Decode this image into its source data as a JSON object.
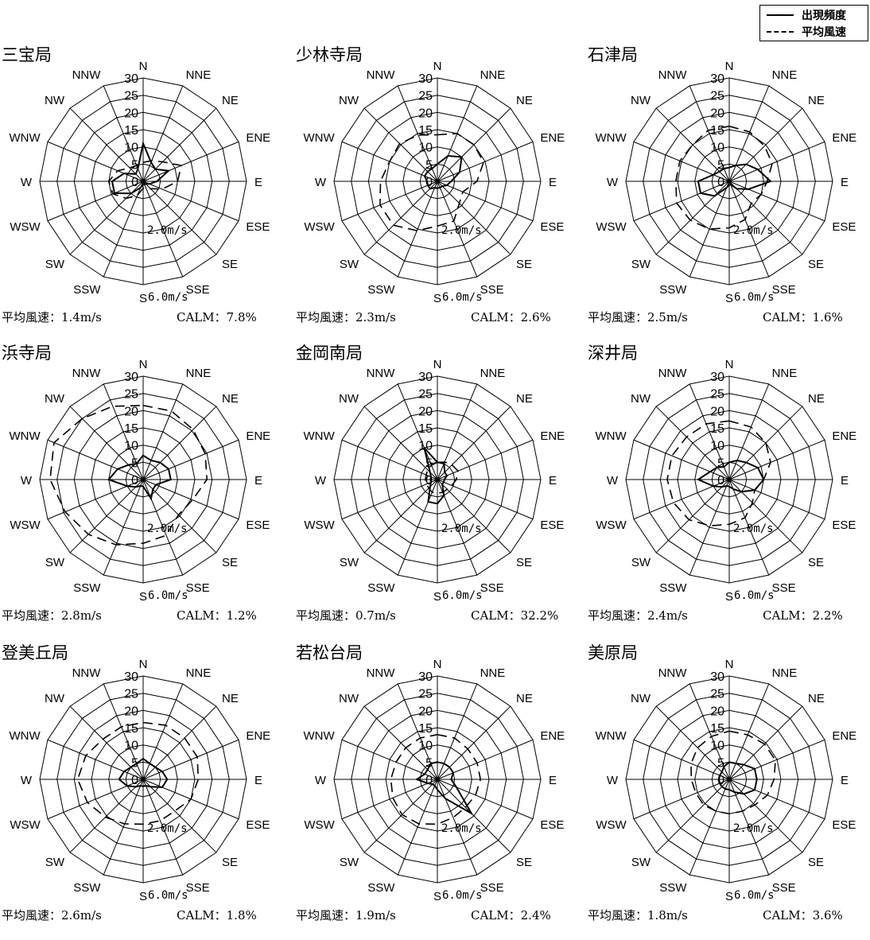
{
  "legend": {
    "frequency_label": "出現頻度",
    "speed_label": "平均風速"
  },
  "chart_data": [
    {
      "type": "radar",
      "title": "三宝局",
      "directions": [
        "N",
        "NNE",
        "NE",
        "ENE",
        "E",
        "ESE",
        "SE",
        "SSE",
        "S",
        "SSW",
        "SW",
        "WSW",
        "W",
        "WNW",
        "NW",
        "NNW"
      ],
      "radial_ticks": [
        0,
        5,
        10,
        15,
        20,
        25,
        30
      ],
      "rmax": 30,
      "speed_ticks": [
        "2.0m/s",
        "6.0m/s"
      ],
      "frequency": [
        11,
        6,
        5,
        8,
        4,
        2,
        1,
        1,
        1,
        2,
        5,
        9,
        9,
        6,
        3,
        4
      ],
      "mean_speed_ms": [
        1.1,
        1.3,
        1.6,
        2.4,
        2.0,
        1.2,
        0.6,
        0.4,
        0.4,
        0.9,
        1.4,
        1.9,
        2.0,
        1.6,
        1.1,
        1.0
      ],
      "avg_speed_text": "平均風速：1.4m/s",
      "calm_text": "CALM：7.8%"
    },
    {
      "type": "radar",
      "title": "少林寺局",
      "directions": [
        "N",
        "NNE",
        "NE",
        "ENE",
        "E",
        "ESE",
        "SE",
        "SSE",
        "S",
        "SSW",
        "SW",
        "WSW",
        "W",
        "WNW",
        "NW",
        "NNW"
      ],
      "radial_ticks": [
        0,
        5,
        10,
        15,
        20,
        25,
        30
      ],
      "rmax": 30,
      "speed_ticks": [
        "2.0m/s",
        "6.0m/s"
      ],
      "frequency": [
        5,
        8,
        10,
        7,
        4,
        3,
        2,
        2,
        2,
        2,
        3,
        3,
        3,
        4,
        4,
        4
      ],
      "mean_speed_ms": [
        2.7,
        3.0,
        3.0,
        2.9,
        2.3,
        1.6,
        1.8,
        2.5,
        2.6,
        3.1,
        3.6,
        3.6,
        3.3,
        3.0,
        3.1,
        2.9
      ],
      "avg_speed_text": "平均風速：2.3m/s",
      "calm_text": "CALM：2.6%"
    },
    {
      "type": "radar",
      "title": "石津局",
      "directions": [
        "N",
        "NNE",
        "NE",
        "ENE",
        "E",
        "ESE",
        "SE",
        "SSE",
        "S",
        "SSW",
        "SW",
        "WSW",
        "W",
        "WNW",
        "NW",
        "NNW"
      ],
      "radial_ticks": [
        0,
        5,
        10,
        15,
        20,
        25,
        30
      ],
      "rmax": 30,
      "speed_ticks": [
        "2.0m/s",
        "6.0m/s"
      ],
      "frequency": [
        4,
        5,
        7,
        9,
        12,
        6,
        3,
        1,
        1,
        2,
        6,
        9,
        9,
        5,
        4,
        4
      ],
      "mean_speed_ms": [
        3.2,
        3.1,
        2.9,
        2.7,
        2.2,
        2.0,
        1.8,
        2.4,
        2.7,
        3.0,
        3.2,
        3.3,
        3.1,
        3.1,
        3.0,
        3.2
      ],
      "avg_speed_text": "平均風速：2.5m/s",
      "calm_text": "CALM：1.6%"
    },
    {
      "type": "radar",
      "title": "浜寺局",
      "directions": [
        "N",
        "NNE",
        "NE",
        "ENE",
        "E",
        "ESE",
        "SE",
        "SSE",
        "S",
        "SSW",
        "SW",
        "WSW",
        "W",
        "WNW",
        "NW",
        "NNW"
      ],
      "radial_ticks": [
        0,
        5,
        10,
        15,
        20,
        25,
        30
      ],
      "rmax": 30,
      "speed_ticks": [
        "2.0m/s",
        "6.0m/s"
      ],
      "frequency": [
        7,
        6,
        7,
        8,
        8,
        4,
        4,
        6,
        2,
        2,
        3,
        5,
        10,
        8,
        6,
        5
      ],
      "mean_speed_ms": [
        4.3,
        4.3,
        4.1,
        3.9,
        3.7,
        3.1,
        2.9,
        3.5,
        3.7,
        4.1,
        4.5,
        4.9,
        5.4,
        5.6,
        5.0,
        4.6
      ],
      "avg_speed_text": "平均風速：2.8m/s",
      "calm_text": "CALM：1.2%"
    },
    {
      "type": "radar",
      "title": "金岡南局",
      "directions": [
        "N",
        "NNE",
        "NE",
        "ENE",
        "E",
        "ESE",
        "SE",
        "SSE",
        "S",
        "SSW",
        "SW",
        "WSW",
        "W",
        "WNW",
        "NW",
        "NNW"
      ],
      "radial_ticks": [
        0,
        5,
        10,
        15,
        20,
        25,
        30
      ],
      "rmax": 30,
      "speed_ticks": [
        "2.0m/s",
        "6.0m/s"
      ],
      "frequency": [
        5,
        5,
        3,
        3,
        2,
        2,
        2,
        5,
        7,
        7,
        3,
        2,
        2,
        2,
        3,
        10
      ],
      "mean_speed_ms": [
        1.0,
        1.1,
        1.2,
        1.3,
        1.1,
        0.9,
        0.8,
        0.8,
        0.8,
        0.8,
        0.7,
        0.7,
        0.7,
        0.7,
        0.8,
        0.9
      ],
      "avg_speed_text": "平均風速：0.7m/s",
      "calm_text": "CALM：32.2%"
    },
    {
      "type": "radar",
      "title": "深井局",
      "directions": [
        "N",
        "NNE",
        "NE",
        "ENE",
        "E",
        "ESE",
        "SE",
        "SSE",
        "S",
        "SSW",
        "SW",
        "WSW",
        "W",
        "WNW",
        "NW",
        "NNW"
      ],
      "radial_ticks": [
        0,
        5,
        10,
        15,
        20,
        25,
        30
      ],
      "rmax": 30,
      "speed_ticks": [
        "2.0m/s",
        "6.0m/s"
      ],
      "frequency": [
        5,
        6,
        7,
        9,
        10,
        8,
        5,
        3,
        2,
        2,
        3,
        5,
        9,
        6,
        5,
        4
      ],
      "mean_speed_ms": [
        3.4,
        3.3,
        3.0,
        2.6,
        2.0,
        1.6,
        1.9,
        2.4,
        2.6,
        2.9,
        3.3,
        3.5,
        3.6,
        3.6,
        3.5,
        3.5
      ],
      "avg_speed_text": "平均風速：2.4m/s",
      "calm_text": "CALM：2.2%"
    },
    {
      "type": "radar",
      "title": "登美丘局",
      "directions": [
        "N",
        "NNE",
        "NE",
        "ENE",
        "E",
        "ESE",
        "SE",
        "SSE",
        "S",
        "SSW",
        "SW",
        "WSW",
        "W",
        "WNW",
        "NW",
        "NNW"
      ],
      "radial_ticks": [
        0,
        5,
        10,
        15,
        20,
        25,
        30
      ],
      "rmax": 30,
      "speed_ticks": [
        "2.0m/s",
        "6.0m/s"
      ],
      "frequency": [
        6,
        5,
        5,
        6,
        7,
        6,
        3,
        2,
        2,
        2,
        3,
        5,
        7,
        6,
        5,
        5
      ],
      "mean_speed_ms": [
        3.3,
        3.4,
        3.4,
        3.4,
        3.2,
        3.0,
        2.6,
        2.6,
        2.6,
        2.8,
        3.1,
        3.5,
        3.8,
        3.6,
        3.3,
        3.3
      ],
      "avg_speed_text": "平均風速：2.6m/s",
      "calm_text": "CALM：1.8%"
    },
    {
      "type": "radar",
      "title": "若松台局",
      "directions": [
        "N",
        "NNE",
        "NE",
        "ENE",
        "E",
        "ESE",
        "SE",
        "SSE",
        "S",
        "SSW",
        "SW",
        "WSW",
        "W",
        "WNW",
        "NW",
        "NNW"
      ],
      "radial_ticks": [
        0,
        5,
        10,
        15,
        20,
        25,
        30
      ],
      "rmax": 30,
      "speed_ticks": [
        "2.0m/s",
        "6.0m/s"
      ],
      "frequency": [
        5,
        5,
        5,
        5,
        4,
        6,
        14,
        6,
        3,
        2,
        2,
        3,
        6,
        4,
        4,
        5
      ],
      "mean_speed_ms": [
        2.6,
        2.6,
        2.5,
        2.5,
        2.5,
        2.4,
        2.3,
        2.4,
        2.6,
        2.8,
        2.9,
        2.8,
        2.7,
        2.6,
        2.6,
        2.6
      ],
      "avg_speed_text": "平均風速：1.9m/s",
      "calm_text": "CALM：2.4%"
    },
    {
      "type": "radar",
      "title": "美原局",
      "directions": [
        "N",
        "NNE",
        "NE",
        "ENE",
        "E",
        "ESE",
        "SE",
        "SSE",
        "S",
        "SSW",
        "SW",
        "WSW",
        "W",
        "WNW",
        "NW",
        "NNW"
      ],
      "radial_ticks": [
        0,
        5,
        10,
        15,
        20,
        25,
        30
      ],
      "rmax": 30,
      "speed_ticks": [
        "2.0m/s",
        "6.0m/s"
      ],
      "frequency": [
        5,
        5,
        6,
        8,
        8,
        8,
        6,
        4,
        3,
        3,
        3,
        3,
        3,
        3,
        3,
        4
      ],
      "mean_speed_ms": [
        2.8,
        2.8,
        2.9,
        2.9,
        2.6,
        2.4,
        2.1,
        2.0,
        2.0,
        2.0,
        2.1,
        2.1,
        2.2,
        2.4,
        2.6,
        2.7
      ],
      "avg_speed_text": "平均風速：1.8m/s",
      "calm_text": "CALM：3.6%"
    }
  ]
}
